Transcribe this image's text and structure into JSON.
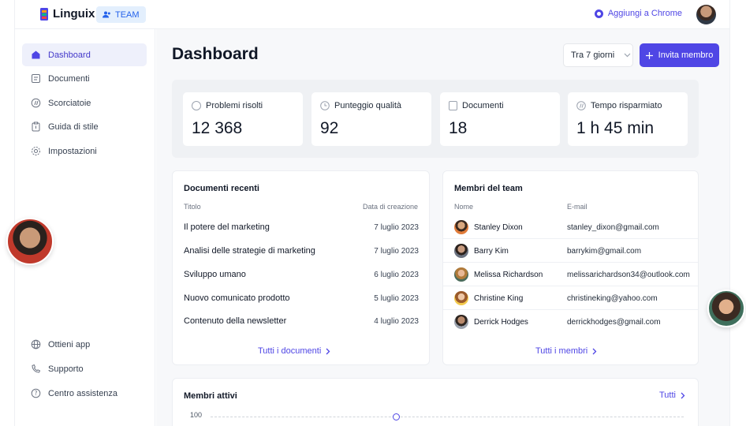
{
  "header": {
    "app_name": "Linguix",
    "team_badge": "TEAM",
    "chrome_link": "Aggiungi a Chrome",
    "accent": "#4f46e5"
  },
  "sidebar": {
    "items": [
      {
        "label": "Dashboard",
        "icon": "home-icon",
        "active": true
      },
      {
        "label": "Documenti",
        "icon": "document-icon"
      },
      {
        "label": "Scorciatoie",
        "icon": "shortcut-icon"
      },
      {
        "label": "Guida di stile",
        "icon": "style-guide-icon"
      },
      {
        "label": "Impostazioni",
        "icon": "gear-icon"
      }
    ],
    "bottom_items": [
      {
        "label": "Ottieni app",
        "icon": "globe-icon"
      },
      {
        "label": "Supporto",
        "icon": "phone-icon"
      },
      {
        "label": "Centro assistenza",
        "icon": "help-icon"
      }
    ]
  },
  "main": {
    "title": "Dashboard",
    "range": "Tra 7 giorni",
    "invite_label": "Invita membro"
  },
  "stats": [
    {
      "label": "Problemi risolti",
      "value": "12 368",
      "icon": "info-circle-icon"
    },
    {
      "label": "Punteggio qualità",
      "value": "92",
      "icon": "clock-icon"
    },
    {
      "label": "Documenti",
      "value": "18",
      "icon": "document-icon"
    },
    {
      "label": "Tempo risparmiato",
      "value": "1 h 45 min",
      "icon": "shortcut-icon"
    }
  ],
  "recent_docs": {
    "title": "Documenti recenti",
    "col_title": "Titolo",
    "col_date": "Data di creazione",
    "rows": [
      {
        "title": "Il potere del marketing",
        "date": "7 luglio 2023"
      },
      {
        "title": "Analisi delle strategie di marketing",
        "date": "7 luglio 2023"
      },
      {
        "title": "Sviluppo umano",
        "date": "6 luglio 2023"
      },
      {
        "title": "Nuovo comunicato prodotto",
        "date": "5 luglio 2023"
      },
      {
        "title": "Contenuto della newsletter",
        "date": "4 luglio 2023"
      }
    ],
    "link": "Tutti i documenti"
  },
  "team": {
    "title": "Membri del team",
    "col_name": "Nome",
    "col_email": "E-mail",
    "rows": [
      {
        "name": "Stanley Dixon",
        "email": "stanley_dixon@gmail.com"
      },
      {
        "name": "Barry Kim",
        "email": "barrykim@gmail.com"
      },
      {
        "name": "Melissa Richardson",
        "email": "melissarichardson34@outlook.com"
      },
      {
        "name": "Christine King",
        "email": "christineking@yahoo.com"
      },
      {
        "name": "Derrick Hodges",
        "email": "derrickhodges@gmail.com"
      }
    ],
    "link": "Tutti i membri"
  },
  "active": {
    "title": "Membri attivi",
    "link": "Tutti",
    "axis_top": "100"
  }
}
